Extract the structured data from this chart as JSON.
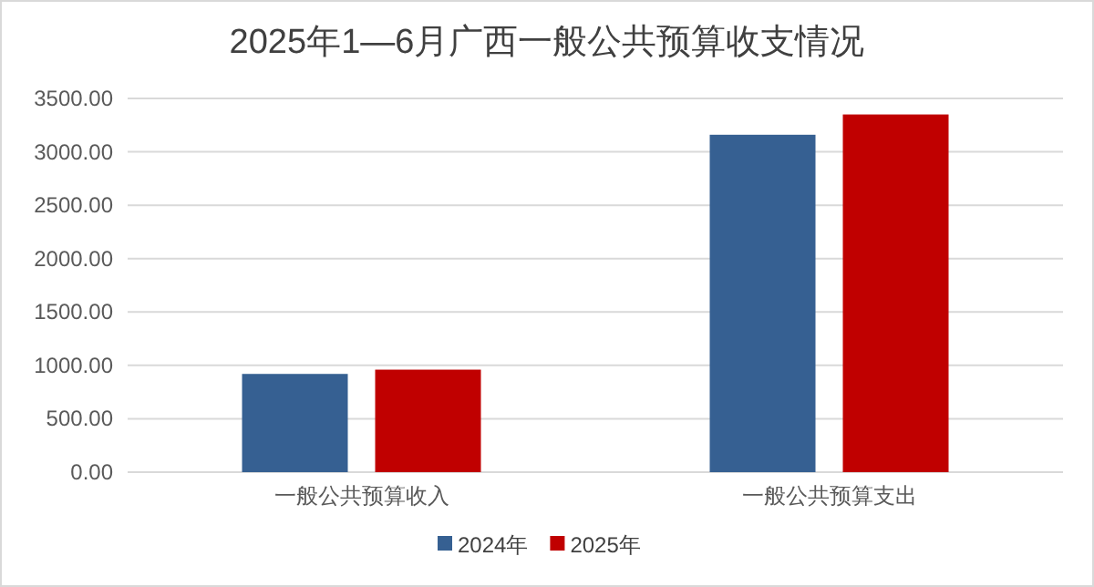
{
  "chart_data": {
    "type": "bar",
    "title": "2025年1—6月广西一般公共预算收支情况",
    "categories": [
      "一般公共预算收入",
      "一般公共预算支出"
    ],
    "series": [
      {
        "name": "2024年",
        "color": "#366092",
        "values": [
          920,
          3160
        ]
      },
      {
        "name": "2025年",
        "color": "#c00000",
        "values": [
          960,
          3350
        ]
      }
    ],
    "ylim": [
      0,
      3500
    ],
    "yticks": [
      {
        "value": 0,
        "label": "0.00"
      },
      {
        "value": 500,
        "label": "500.00"
      },
      {
        "value": 1000,
        "label": "1000.00"
      },
      {
        "value": 1500,
        "label": "1500.00"
      },
      {
        "value": 2000,
        "label": "2000.00"
      },
      {
        "value": 2500,
        "label": "2500.00"
      },
      {
        "value": 3000,
        "label": "3000.00"
      },
      {
        "value": 3500,
        "label": "3500.00"
      }
    ],
    "grid": "y",
    "legend": "bottom"
  }
}
